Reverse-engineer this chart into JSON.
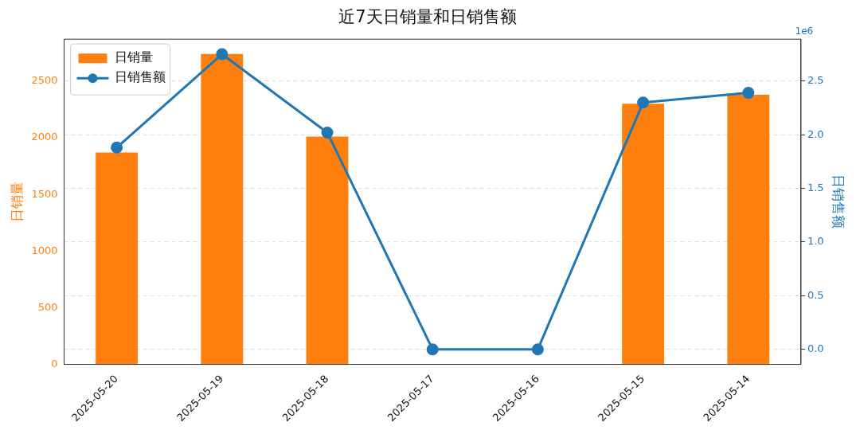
{
  "chart_data": {
    "type": "bar",
    "title": "近7天日销量和日销售额",
    "ylabel": "日销量",
    "y2label": "日销售额",
    "categories": [
      "2025-05-20",
      "2025-05-19",
      "2025-05-18",
      "2025-05-17",
      "2025-05-16",
      "2025-05-15",
      "2025-05-14"
    ],
    "series": [
      {
        "name": "日销量",
        "color": "#ff7f0e",
        "values": [
          1870,
          2740,
          2010,
          0,
          0,
          2300,
          2380
        ]
      },
      {
        "name": "日销售额",
        "type": "line",
        "axis": "y2",
        "color": "#1f77b4",
        "marker": "circle",
        "values": [
          1.88,
          2.75,
          2.02,
          0,
          0,
          2.3,
          2.39
        ]
      }
    ],
    "ylim": [
      0,
      2870
    ],
    "yticks": [
      0,
      500,
      1000,
      1500,
      2000,
      2500
    ],
    "y2lim": [
      -0.14,
      2.89
    ],
    "y2ticks": [
      {
        "value": 0,
        "label": "0.0"
      },
      0.5,
      {
        "value": 1,
        "label": "1.0"
      },
      1.5,
      {
        "value": 2,
        "label": "2.0"
      },
      2.5
    ],
    "annotations": [
      "1e6"
    ],
    "grid": "y2",
    "legend": "top left"
  }
}
